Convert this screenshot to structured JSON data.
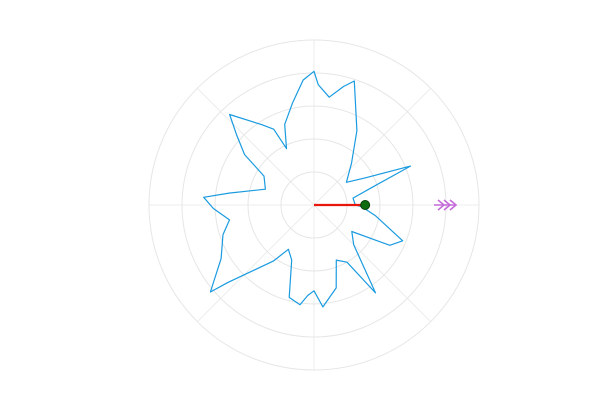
{
  "chart_data": {
    "type": "polar-line",
    "title": "",
    "grid": true,
    "legend": "none",
    "rlim": [
      0,
      1
    ],
    "r_grid_levels": [
      0.2,
      0.4,
      0.6,
      0.8,
      1.0
    ],
    "theta_grid_deg": [
      0,
      45,
      90,
      135,
      180,
      225,
      270,
      315
    ],
    "series": [
      {
        "kind": "outline",
        "color": "#1a9be0",
        "theta_deg": [
          0,
          10,
          17,
          22,
          28,
          35,
          48,
          60,
          72,
          76,
          82,
          88,
          90,
          95,
          102,
          110,
          116,
          118,
          123,
          133,
          138,
          144,
          150,
          162,
          172,
          176,
          182,
          190,
          198,
          210,
          220,
          222,
          234,
          240,
          248,
          255,
          262,
          266,
          270,
          275,
          285,
          292,
          300,
          305,
          315,
          325,
          332,
          338,
          350,
          358
        ],
        "r": [
          0.25,
          0.24,
          0.37,
          0.63,
          0.35,
          0.24,
          0.34,
          0.52,
          0.79,
          0.74,
          0.66,
          0.73,
          0.81,
          0.76,
          0.63,
          0.52,
          0.38,
          0.52,
          0.58,
          0.75,
          0.63,
          0.52,
          0.35,
          0.31,
          0.52,
          0.67,
          0.61,
          0.52,
          0.58,
          0.65,
          0.82,
          0.7,
          0.42,
          0.31,
          0.36,
          0.58,
          0.61,
          0.55,
          0.52,
          0.62,
          0.52,
          0.36,
          0.4,
          0.65,
          0.34,
          0.28,
          0.52,
          0.58,
          0.38,
          0.29
        ]
      },
      {
        "kind": "radius",
        "color": "#e8160c",
        "theta_deg": 0,
        "r": 0.31
      },
      {
        "kind": "marker",
        "color": "#0f6b0f",
        "theta_deg": 0,
        "r": 0.31
      },
      {
        "kind": "direction-arrow",
        "color": "#c46ad9",
        "theta_deg": 0,
        "r": 0.8
      }
    ]
  }
}
